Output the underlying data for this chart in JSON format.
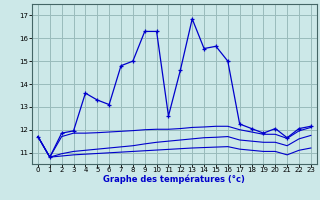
{
  "xlabel": "Graphe des températures (°c)",
  "bg_color": "#cce8e8",
  "grid_color": "#99bbbb",
  "line_color": "#0000cc",
  "xlim": [
    -0.5,
    23.5
  ],
  "ylim": [
    10.5,
    17.5
  ],
  "yticks": [
    11,
    12,
    13,
    14,
    15,
    16,
    17
  ],
  "xticks": [
    0,
    1,
    2,
    3,
    4,
    5,
    6,
    7,
    8,
    9,
    10,
    11,
    12,
    13,
    14,
    15,
    16,
    17,
    18,
    19,
    20,
    21,
    22,
    23
  ],
  "main_x": [
    0,
    1,
    2,
    3,
    4,
    5,
    6,
    7,
    8,
    9,
    10,
    11,
    12,
    13,
    14,
    15,
    16,
    17,
    18,
    19,
    20,
    21,
    22,
    23
  ],
  "main_y": [
    11.7,
    10.8,
    11.85,
    11.95,
    13.6,
    13.3,
    13.1,
    14.8,
    15.0,
    16.3,
    16.3,
    12.6,
    14.6,
    16.85,
    15.55,
    15.65,
    15.0,
    12.25,
    12.05,
    11.85,
    12.05,
    11.65,
    12.05,
    12.15
  ],
  "line1_x": [
    0,
    1,
    2,
    3,
    4,
    5,
    6,
    7,
    8,
    9,
    10,
    11,
    12,
    13,
    14,
    15,
    16,
    17,
    18,
    19,
    20,
    21,
    22,
    23
  ],
  "line1_y": [
    11.7,
    10.8,
    10.85,
    10.9,
    10.93,
    10.96,
    10.99,
    11.02,
    11.05,
    11.08,
    11.11,
    11.14,
    11.17,
    11.2,
    11.22,
    11.24,
    11.26,
    11.15,
    11.1,
    11.05,
    11.05,
    10.9,
    11.1,
    11.2
  ],
  "line2_x": [
    0,
    1,
    2,
    3,
    4,
    5,
    6,
    7,
    8,
    9,
    10,
    11,
    12,
    13,
    14,
    15,
    16,
    17,
    18,
    19,
    20,
    21,
    22,
    23
  ],
  "line2_y": [
    11.7,
    10.8,
    10.95,
    11.05,
    11.1,
    11.15,
    11.2,
    11.25,
    11.3,
    11.38,
    11.45,
    11.5,
    11.55,
    11.6,
    11.65,
    11.67,
    11.7,
    11.55,
    11.5,
    11.45,
    11.45,
    11.3,
    11.6,
    11.75
  ],
  "line3_x": [
    0,
    1,
    2,
    3,
    4,
    5,
    6,
    7,
    8,
    9,
    10,
    11,
    12,
    13,
    14,
    15,
    16,
    17,
    18,
    19,
    20,
    21,
    22,
    23
  ],
  "line3_y": [
    11.7,
    10.8,
    11.7,
    11.85,
    11.85,
    11.87,
    11.9,
    11.93,
    11.96,
    12.0,
    12.02,
    12.02,
    12.05,
    12.1,
    12.12,
    12.15,
    12.15,
    12.0,
    11.9,
    11.8,
    11.8,
    11.62,
    11.95,
    12.1
  ]
}
